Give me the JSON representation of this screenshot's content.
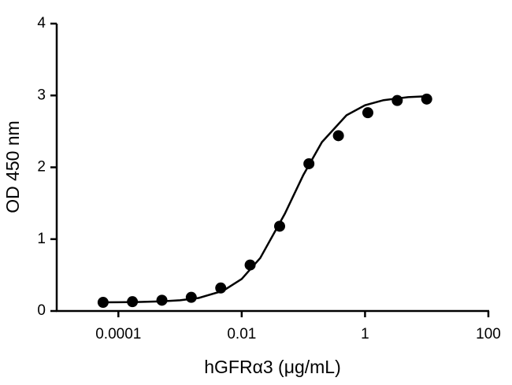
{
  "chart_data": {
    "type": "scatter",
    "x_label": "hGFRα3 (μg/mL)",
    "y_label": "OD 450 nm",
    "x": [
      5.65e-05,
      0.000169,
      0.000508,
      0.00152,
      0.00457,
      0.0137,
      0.0412,
      0.123,
      0.37,
      1.11,
      3.33,
      10
    ],
    "values": [
      0.12,
      0.13,
      0.15,
      0.19,
      0.32,
      0.64,
      1.18,
      2.05,
      2.44,
      2.76,
      2.93,
      2.95
    ],
    "color": "#000000",
    "curve": {
      "x": [
        5e-05,
        0.0001,
        0.0002,
        0.0005,
        0.001,
        0.002,
        0.005,
        0.01,
        0.02,
        0.05,
        0.1,
        0.2,
        0.5,
        1,
        2,
        5,
        10
      ],
      "values": [
        0.121,
        0.122,
        0.125,
        0.134,
        0.149,
        0.181,
        0.282,
        0.446,
        0.738,
        1.353,
        1.894,
        2.351,
        2.724,
        2.864,
        2.935,
        2.976,
        2.989
      ]
    },
    "x_log": true,
    "xlim": [
      1e-05,
      100
    ],
    "xticks": [
      0.0001,
      0.01,
      1,
      100
    ],
    "ylim": [
      0,
      4
    ],
    "yticks": [
      0,
      1,
      2,
      3,
      4
    ]
  }
}
